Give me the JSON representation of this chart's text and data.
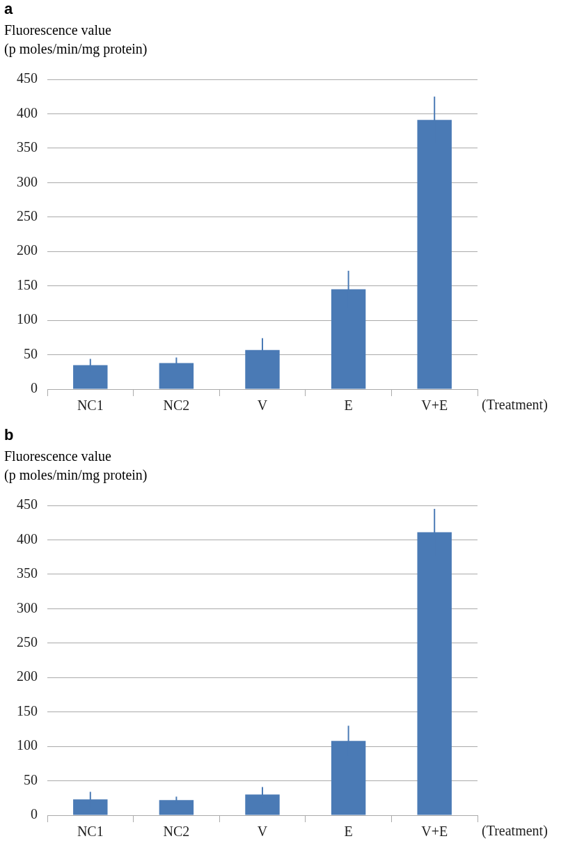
{
  "chart_data": [
    {
      "type": "bar",
      "title": "a",
      "ylabel": "Fluorescence value\n(p moles/min/mg protein)",
      "xlabel": "(Treatment)",
      "categories": [
        "NC1",
        "NC2",
        "V",
        "E",
        "V+E"
      ],
      "values": [
        35,
        38,
        57,
        145,
        391
      ],
      "errors": [
        9,
        8,
        17,
        27,
        34
      ],
      "color": "#4a7ab5",
      "ylim": [
        0,
        450
      ],
      "yticks": [
        0,
        50,
        100,
        150,
        200,
        250,
        300,
        350,
        400,
        450
      ],
      "grid": "y"
    },
    {
      "type": "bar",
      "title": "b",
      "ylabel": "Fluorescence value\n(p moles/min/mg protein)",
      "xlabel": "(Treatment)",
      "categories": [
        "NC1",
        "NC2",
        "V",
        "E",
        "V+E"
      ],
      "values": [
        23,
        22,
        30,
        108,
        411
      ],
      "errors": [
        11,
        5,
        11,
        22,
        34
      ],
      "color": "#4a7ab5",
      "ylim": [
        0,
        450
      ],
      "yticks": [
        0,
        50,
        100,
        150,
        200,
        250,
        300,
        350,
        400,
        450
      ],
      "grid": "y"
    }
  ]
}
